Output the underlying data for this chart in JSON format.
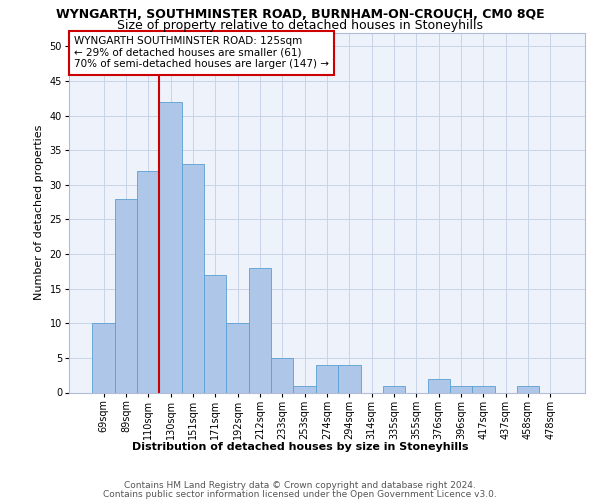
{
  "title1": "WYNGARTH, SOUTHMINSTER ROAD, BURNHAM-ON-CROUCH, CM0 8QE",
  "title2": "Size of property relative to detached houses in Stoneyhills",
  "xlabel": "Distribution of detached houses by size in Stoneyhills",
  "ylabel": "Number of detached properties",
  "categories": [
    "69sqm",
    "89sqm",
    "110sqm",
    "130sqm",
    "151sqm",
    "171sqm",
    "192sqm",
    "212sqm",
    "233sqm",
    "253sqm",
    "274sqm",
    "294sqm",
    "314sqm",
    "335sqm",
    "355sqm",
    "376sqm",
    "396sqm",
    "417sqm",
    "437sqm",
    "458sqm",
    "478sqm"
  ],
  "values": [
    10,
    28,
    32,
    42,
    33,
    17,
    10,
    18,
    5,
    1,
    4,
    4,
    0,
    1,
    0,
    2,
    1,
    1,
    0,
    1,
    0
  ],
  "bar_color": "#aec6e8",
  "bar_edge_color": "#5a9fd4",
  "marker_label": "WYNGARTH SOUTHMINSTER ROAD: 125sqm",
  "annotation_line1": "← 29% of detached houses are smaller (61)",
  "annotation_line2": "70% of semi-detached houses are larger (147) →",
  "vline_color": "#cc0000",
  "annotation_box_color": "#ffffff",
  "annotation_border_color": "#cc0000",
  "ylim": [
    0,
    52
  ],
  "yticks": [
    0,
    5,
    10,
    15,
    20,
    25,
    30,
    35,
    40,
    45,
    50
  ],
  "footer1": "Contains HM Land Registry data © Crown copyright and database right 2024.",
  "footer2": "Contains public sector information licensed under the Open Government Licence v3.0.",
  "background_color": "#eef2fb",
  "grid_color": "#c8d4e8",
  "title1_fontsize": 9,
  "title2_fontsize": 9,
  "axis_label_fontsize": 8,
  "tick_fontsize": 7,
  "footer_fontsize": 6.5,
  "annotation_fontsize": 7.5
}
